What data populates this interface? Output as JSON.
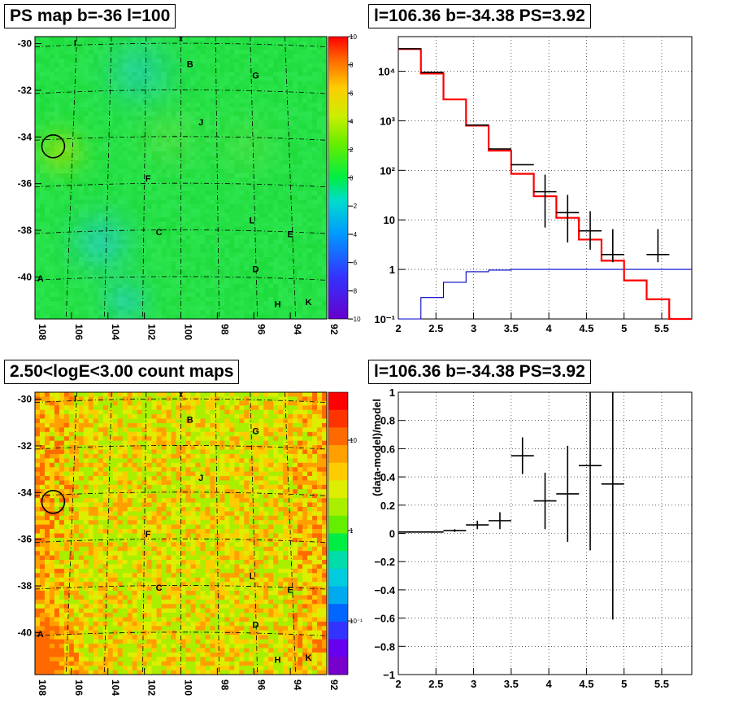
{
  "panels": {
    "ps_map_title": "PS map b=-36 l=100",
    "count_map_title": "2.50<logE<3.00 count maps",
    "spectrum_title": "l=106.36 b=-34.38 PS=3.92",
    "residual_title": "l=106.36 b=-34.38 PS=3.92"
  },
  "chart_data": [
    {
      "type": "heatmap",
      "name": "ps_map",
      "title": "PS map b=-36 l=100",
      "x_ticks": [
        "108",
        "106",
        "104",
        "102",
        "100",
        "98",
        "96",
        "94",
        "92"
      ],
      "y_ticks": [
        "-30",
        "-32",
        "-34",
        "-36",
        "-38",
        "-40"
      ],
      "xlim": [
        108,
        92
      ],
      "ylim": [
        -41.8,
        -29.7
      ],
      "colorbar_ticks": [
        "10",
        "8",
        "6",
        "4",
        "2",
        "0",
        "−2",
        "−4",
        "−6",
        "−8",
        "−10"
      ],
      "colorbar_range": [
        -10,
        10
      ],
      "labels": [
        {
          "text": "A",
          "l": 107.7,
          "b": -40.2
        },
        {
          "text": "B",
          "l": 99.5,
          "b": -31.0
        },
        {
          "text": "C",
          "l": 101.2,
          "b": -38.2
        },
        {
          "text": "D",
          "l": 95.9,
          "b": -39.8
        },
        {
          "text": "E",
          "l": 94.0,
          "b": -38.3
        },
        {
          "text": "F",
          "l": 101.8,
          "b": -35.9
        },
        {
          "text": "G",
          "l": 95.9,
          "b": -31.5
        },
        {
          "text": "H",
          "l": 94.7,
          "b": -41.3
        },
        {
          "text": "I",
          "l": 105.8,
          "b": -30.1
        },
        {
          "text": "J",
          "l": 98.9,
          "b": -33.5
        },
        {
          "text": "K",
          "l": 93.0,
          "b": -41.2
        },
        {
          "text": "L",
          "l": 96.1,
          "b": -37.7
        },
        {
          "text": "x",
          "l": 100.0,
          "b": -29.9
        }
      ],
      "circle": {
        "l": 107.0,
        "b": -34.4
      }
    },
    {
      "type": "heatmap",
      "name": "count_map",
      "title": "2.50<logE<3.00 count maps",
      "x_ticks": [
        "108",
        "106",
        "104",
        "102",
        "100",
        "98",
        "96",
        "94",
        "92"
      ],
      "y_ticks": [
        "-30",
        "-32",
        "-34",
        "-36",
        "-38",
        "-40"
      ],
      "xlim": [
        108,
        92
      ],
      "ylim": [
        -41.8,
        -29.7
      ],
      "colorbar_ticks": [
        "10",
        "1",
        "10⁻¹"
      ],
      "colorbar_scale": "log",
      "labels": [
        {
          "text": "A",
          "l": 107.7,
          "b": -40.2
        },
        {
          "text": "B",
          "l": 99.5,
          "b": -31.0
        },
        {
          "text": "C",
          "l": 101.2,
          "b": -38.2
        },
        {
          "text": "D",
          "l": 95.9,
          "b": -39.8
        },
        {
          "text": "E",
          "l": 94.0,
          "b": -38.3
        },
        {
          "text": "F",
          "l": 101.8,
          "b": -35.9
        },
        {
          "text": "G",
          "l": 95.9,
          "b": -31.5
        },
        {
          "text": "H",
          "l": 94.7,
          "b": -41.3
        },
        {
          "text": "I",
          "l": 105.8,
          "b": -30.1
        },
        {
          "text": "J",
          "l": 98.9,
          "b": -33.5
        },
        {
          "text": "K",
          "l": 93.0,
          "b": -41.2
        },
        {
          "text": "L",
          "l": 96.1,
          "b": -37.7
        },
        {
          "text": "x",
          "l": 100.0,
          "b": -29.9
        }
      ],
      "circle": {
        "l": 107.0,
        "b": -34.4
      }
    },
    {
      "type": "line",
      "name": "spectrum",
      "title": "l=106.36 b=-34.38 PS=3.92",
      "xlim": [
        2,
        5.9
      ],
      "ylim": [
        0.1,
        50000
      ],
      "yscale": "log",
      "x_ticks": [
        "2",
        "2.5",
        "3",
        "3.5",
        "4",
        "4.5",
        "5",
        "5.5"
      ],
      "y_ticks": [
        "10⁻¹",
        "1",
        "10",
        "10²",
        "10³",
        "10⁴"
      ],
      "grid": true,
      "bin_edges": [
        2.0,
        2.3,
        2.6,
        2.9,
        3.2,
        3.5,
        3.8,
        4.1,
        4.4,
        4.7,
        5.0,
        5.3,
        5.6,
        5.9
      ],
      "series": [
        {
          "color": "#ff0000",
          "values": [
            28000,
            9000,
            2700,
            800,
            250,
            85,
            30,
            11,
            4,
            1.5,
            0.6,
            0.25,
            0.09
          ]
        },
        {
          "color": "#0000cc",
          "values": [
            0.09,
            0.27,
            0.55,
            0.9,
            0.97,
            1,
            1,
            1,
            1,
            1,
            1,
            1,
            1
          ]
        },
        {
          "color": "#000000",
          "points": [
            {
              "x": 2.15,
              "y": 28500,
              "err": [
                0,
                0
              ]
            },
            {
              "x": 2.45,
              "y": 9500,
              "err": [
                0,
                0
              ]
            },
            {
              "x": 3.05,
              "y": 820,
              "err": [
                0,
                0
              ]
            },
            {
              "x": 3.35,
              "y": 270,
              "err": [
                0,
                0
              ]
            },
            {
              "x": 3.65,
              "y": 130,
              "err": [
                0,
                0
              ]
            },
            {
              "x": 3.95,
              "y": 37,
              "err": [
                30,
                45
              ]
            },
            {
              "x": 4.25,
              "y": 14,
              "err": [
                10.5,
                18
              ]
            },
            {
              "x": 4.55,
              "y": 6,
              "err": [
                3.5,
                9
              ]
            },
            {
              "x": 4.85,
              "y": 2,
              "err": [
                0.6,
                4.5
              ]
            },
            {
              "x": 5.45,
              "y": 2,
              "err": [
                0.6,
                4.5
              ]
            }
          ]
        }
      ]
    },
    {
      "type": "scatter",
      "name": "residual",
      "title": "l=106.36 b=-34.38 PS=3.92",
      "ylabel": "(data-model)/model",
      "xlim": [
        2,
        5.9
      ],
      "ylim": [
        -1,
        1
      ],
      "x_ticks": [
        "2",
        "2.5",
        "3",
        "3.5",
        "4",
        "4.5",
        "5",
        "5.5"
      ],
      "y_ticks": [
        "1",
        "0.8",
        "0.6",
        "0.4",
        "0.2",
        "0",
        "−0.2",
        "−0.4",
        "−0.6",
        "−0.8",
        "−1"
      ],
      "grid": true,
      "points": [
        {
          "x": 2.15,
          "y": 0.01,
          "err": 0.005
        },
        {
          "x": 2.45,
          "y": 0.01,
          "err": 0.005
        },
        {
          "x": 2.75,
          "y": 0.02,
          "err": 0.01
        },
        {
          "x": 3.05,
          "y": 0.06,
          "err": 0.03
        },
        {
          "x": 3.35,
          "y": 0.09,
          "err": 0.06
        },
        {
          "x": 3.65,
          "y": 0.55,
          "err": 0.13
        },
        {
          "x": 3.95,
          "y": 0.23,
          "err": 0.2
        },
        {
          "x": 4.25,
          "y": 0.28,
          "err": 0.34
        },
        {
          "x": 4.55,
          "y": 0.48,
          "err": 0.6
        },
        {
          "x": 4.85,
          "y": 0.35,
          "err": 0.96
        }
      ]
    }
  ]
}
